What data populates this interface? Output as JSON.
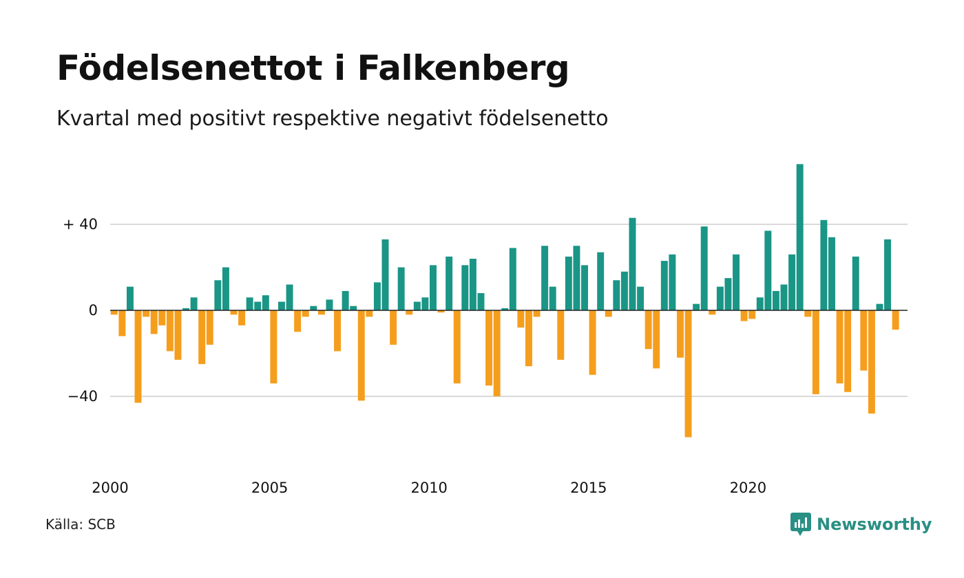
{
  "title": "Födelsenettot i Falkenberg",
  "subtitle": "Kvartal med positivt respektive negativt födelsenetto",
  "source": "Källa: SCB",
  "brand": {
    "name": "Newsworthy",
    "icon": "newsworthy-logo-icon",
    "color": "#2a8f84"
  },
  "colors": {
    "positive": "#1a9586",
    "negative": "#f59e1d",
    "grid": "#d9d9d9",
    "zero_line": "#222222"
  },
  "chart_data": {
    "type": "bar",
    "x_start_year": 2000,
    "x_end_year": 2025,
    "period": "quarter",
    "values": [
      -2,
      -12,
      11,
      -43,
      -3,
      -11,
      -7,
      -19,
      -23,
      1,
      6,
      -25,
      -16,
      14,
      20,
      -2,
      -7,
      6,
      4,
      7,
      -34,
      4,
      12,
      -10,
      -3,
      2,
      -2,
      5,
      -19,
      9,
      2,
      -42,
      -3,
      13,
      33,
      -16,
      20,
      -2,
      4,
      6,
      21,
      -1,
      25,
      -34,
      21,
      24,
      8,
      -35,
      -40,
      1,
      29,
      -8,
      -26,
      -3,
      30,
      11,
      -23,
      25,
      30,
      21,
      -30,
      27,
      -3,
      14,
      18,
      43,
      11,
      -18,
      -27,
      23,
      26,
      -22,
      -59,
      3,
      39,
      -2,
      11,
      15,
      26,
      -5,
      -4,
      6,
      37,
      9,
      12,
      26,
      68,
      -3,
      -39,
      42,
      34,
      -34,
      -38,
      25,
      -28,
      -48,
      3,
      33,
      -9
    ],
    "x_ticks": [
      {
        "value": 2000,
        "label": "2000"
      },
      {
        "value": 2005,
        "label": "2005"
      },
      {
        "value": 2010,
        "label": "2010"
      },
      {
        "value": 2015,
        "label": "2015"
      },
      {
        "value": 2020,
        "label": "2020"
      }
    ],
    "y_ticks": [
      {
        "value": 40,
        "label": "+ 40"
      },
      {
        "value": 0,
        "label": "0"
      },
      {
        "value": -40,
        "label": "−40"
      }
    ],
    "ylim": [
      -65,
      70
    ],
    "grid": true,
    "legend": "none",
    "title": "Födelsenettot i Falkenberg",
    "subtitle": "Kvartal med positivt respektive negativt födelsenetto"
  }
}
